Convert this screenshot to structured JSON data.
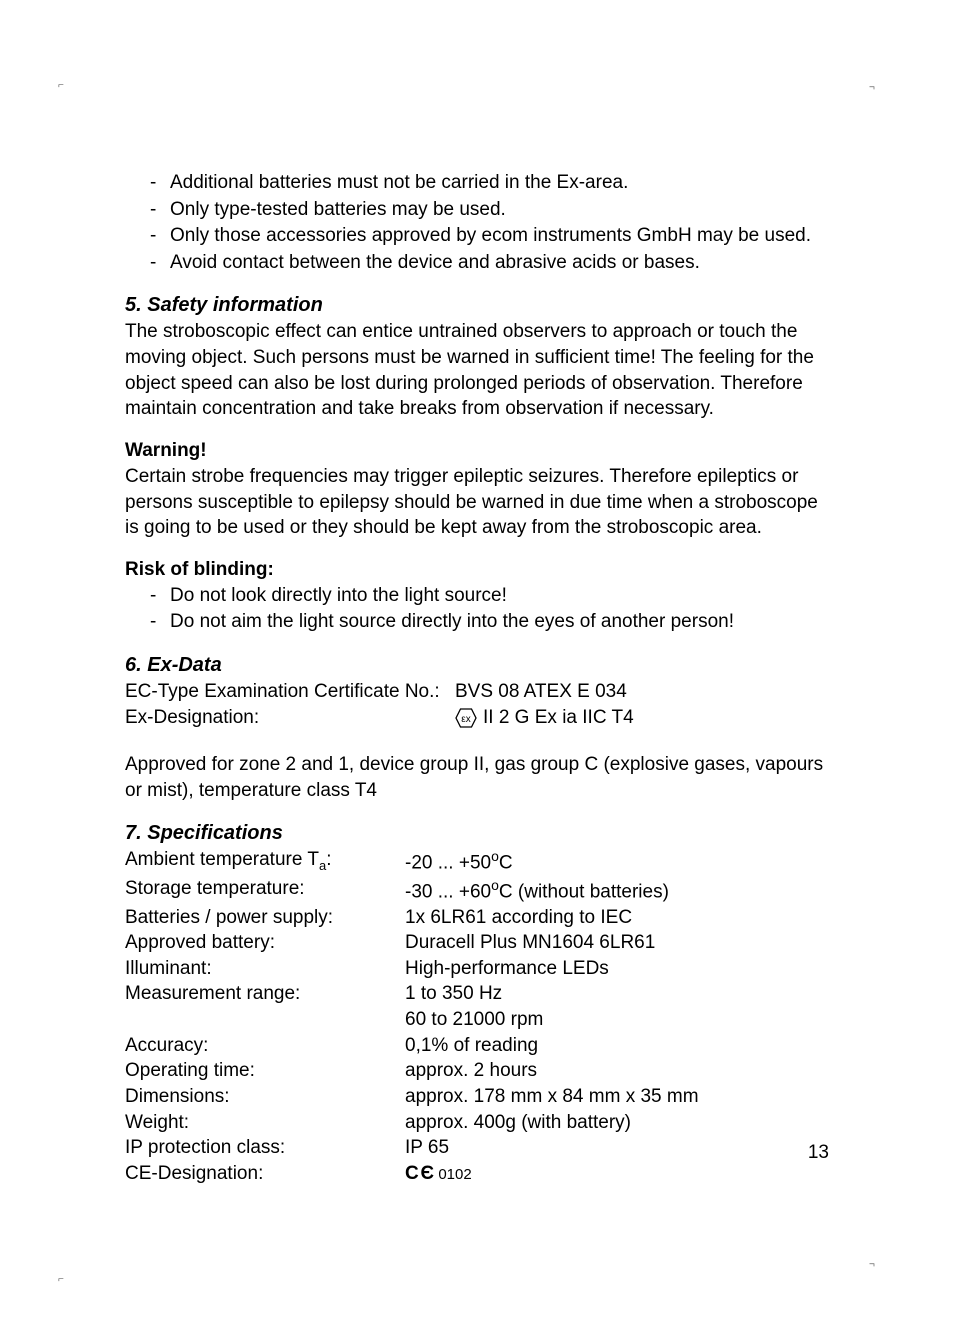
{
  "intro_bullets": [
    "Additional batteries must not be carried in the Ex-area.",
    "Only type-tested batteries may be used.",
    "Only those accessories approved by ecom instruments GmbH may be used.",
    "Avoid contact between the device and abrasive acids or bases."
  ],
  "section5": {
    "heading": "5. Safety information",
    "body": "The stroboscopic effect can entice untrained observers to approach or touch the moving object. Such persons must be warned in sufficient time! The feeling for the object speed can also be lost during prolonged periods of observation. Therefore maintain concentration and take breaks from observation if necessary."
  },
  "warning": {
    "heading": "Warning!",
    "body": "Certain strobe frequencies may trigger epileptic seizures. Therefore epileptics or persons susceptible to epilepsy should be warned in due time when a stroboscope is going to be used or they should be kept away from the stroboscopic area."
  },
  "blinding": {
    "heading": "Risk of blinding:",
    "bullets": [
      "Do not look directly into the light source!",
      "Do not aim the light source directly into the eyes of another person!"
    ]
  },
  "section6": {
    "heading": "6. Ex-Data",
    "rows": [
      {
        "label": "EC-Type Examination Certificate No.:",
        "value": "BVS 08 ATEX E 034"
      },
      {
        "label": "Ex-Designation:",
        "value": "II 2 G Ex ia IIC T4",
        "hasHexIcon": true
      }
    ],
    "approval": "Approved for zone 2 and 1, device group II, gas group C (explosive gases, vapours or mist), temperature class T4"
  },
  "section7": {
    "heading": "7. Specifications",
    "rows": [
      {
        "label_html": "Ambient temperature T<span class=\"subscript\">a</span>:",
        "value_html": "-20 ... +50<span class=\"degree\">o</span>C"
      },
      {
        "label_html": "Storage temperature:",
        "value_html": "-30 ... +60<span class=\"degree\">o</span>C (without batteries)"
      },
      {
        "label_html": "Batteries / power supply:",
        "value_html": "1x 6LR61 according to IEC"
      },
      {
        "label_html": "Approved battery:",
        "value_html": "Duracell Plus MN1604 6LR61"
      },
      {
        "label_html": "Illuminant:",
        "value_html": "High-performance LEDs"
      },
      {
        "label_html": "Measurement range:",
        "value_html": "1 to 350 Hz"
      },
      {
        "label_html": "",
        "value_html": "60 to 21000 rpm"
      },
      {
        "label_html": "Accuracy:",
        "value_html": "0,1% of reading"
      },
      {
        "label_html": "Operating time:",
        "value_html": "approx. 2 hours"
      },
      {
        "label_html": "Dimensions:",
        "value_html": "approx. 178 mm x 84 mm x 35 mm"
      },
      {
        "label_html": "Weight:",
        "value_html": "approx. 400g (with battery)"
      },
      {
        "label_html": "IP protection class:",
        "value_html": "IP 65"
      },
      {
        "label_html": "CE-Designation:",
        "value_html": "<span class=\"ce-mark\">C Є</span> <span class=\"ce-number\">0102</span>"
      }
    ]
  },
  "page_number": "13"
}
